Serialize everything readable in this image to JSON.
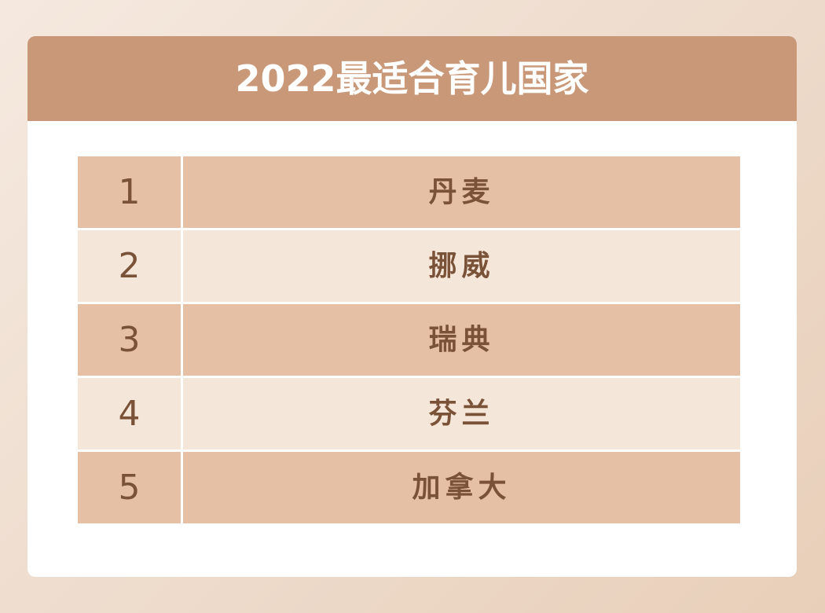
{
  "header": {
    "title": "2022最适合育儿国家"
  },
  "table": {
    "rows": [
      [
        "1",
        "丹麦"
      ],
      [
        "2",
        "挪威"
      ],
      [
        "3",
        "瑞典"
      ],
      [
        "4",
        "芬兰"
      ],
      [
        "5",
        "加拿大"
      ]
    ]
  }
}
